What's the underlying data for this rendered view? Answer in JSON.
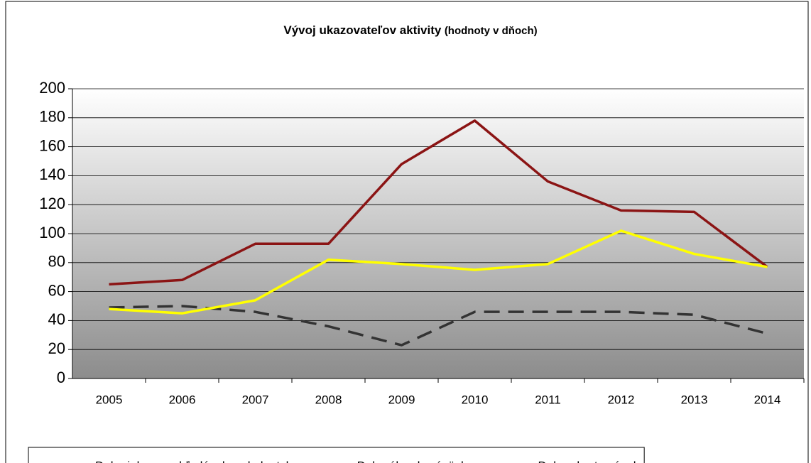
{
  "chart_data": {
    "type": "line",
    "title": "Vývoj ukazovateľov aktivity",
    "subtitle": "(hodnoty v dňoch)",
    "categories": [
      "2005",
      "2006",
      "2007",
      "2008",
      "2009",
      "2010",
      "2011",
      "2012",
      "2013",
      "2014"
    ],
    "series": [
      {
        "name": "Doba inkasa pohľadávok z obch.styku",
        "color": "#333333",
        "dashed": true,
        "values": [
          49,
          50,
          46,
          36,
          23,
          46,
          46,
          46,
          44,
          31
        ]
      },
      {
        "name": "Doba úhrady záväzkov",
        "color": "#8b1414",
        "dashed": false,
        "values": [
          65,
          68,
          93,
          93,
          148,
          178,
          136,
          116,
          115,
          77
        ]
      },
      {
        "name": "Doba obratu zásob",
        "color": "#ffff00",
        "dashed": false,
        "values": [
          48,
          45,
          54,
          82,
          79,
          75,
          79,
          102,
          86,
          77
        ]
      }
    ],
    "ylim": [
      0,
      200
    ],
    "yticks": [
      0,
      20,
      40,
      60,
      80,
      100,
      120,
      140,
      160,
      180,
      200
    ],
    "grid": true,
    "legend": "bottom"
  }
}
